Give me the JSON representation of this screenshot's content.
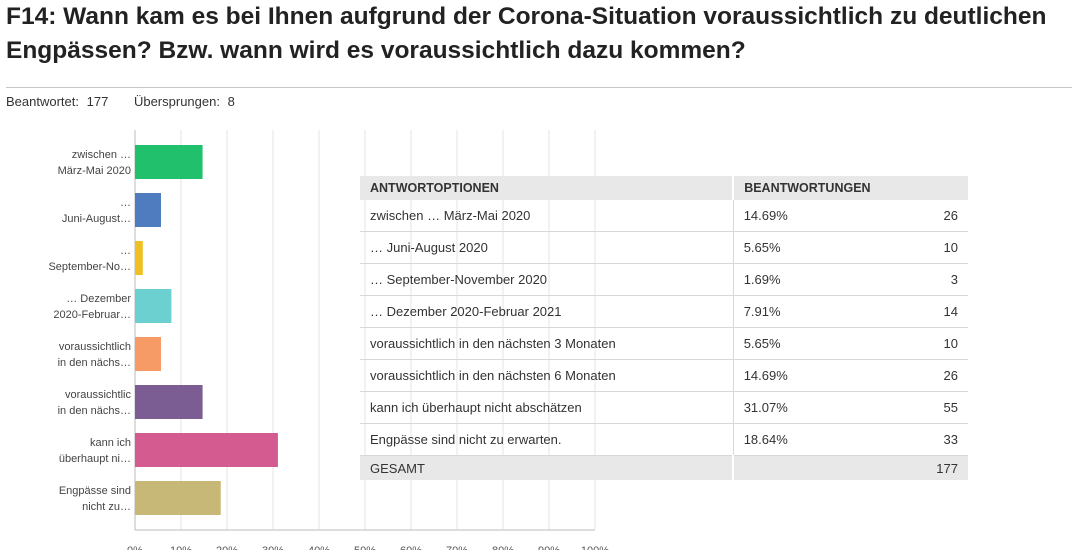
{
  "header": {
    "title": "F14: Wann kam es bei Ihnen aufgrund der Corona-Situation voraussichtlich zu deutlichen Engpässen? Bzw. wann wird es voraussichtlich dazu kommen?",
    "answered_label": "Beantwortet:",
    "answered_value": "177",
    "skipped_label": "Übersprungen:",
    "skipped_value": "8"
  },
  "chart_data": {
    "type": "bar",
    "orientation": "horizontal",
    "categories": [
      [
        "zwischen …",
        "März-Mai 2020"
      ],
      [
        "…",
        "Juni-August…"
      ],
      [
        "…",
        "September-No…"
      ],
      [
        "… Dezember",
        "2020-Februar…"
      ],
      [
        "voraussichtlich",
        "in den nächs…"
      ],
      [
        "voraussichtlic",
        "in den nächs…"
      ],
      [
        "kann ich",
        "überhaupt ni…"
      ],
      [
        "Engpässe sind",
        "nicht zu…"
      ]
    ],
    "values": [
      14.69,
      5.65,
      1.69,
      7.91,
      5.65,
      14.69,
      31.07,
      18.64
    ],
    "colors": [
      "#20c06c",
      "#4f7bbf",
      "#f0c020",
      "#6ccfd0",
      "#f79b66",
      "#7b5c93",
      "#d35b90",
      "#c8b878"
    ],
    "xlim": [
      0,
      100
    ],
    "ticks": [
      "0%",
      "10%",
      "20%",
      "30%",
      "40%",
      "50%",
      "60%",
      "70%",
      "80%",
      "90%",
      "100%"
    ],
    "grid": true
  },
  "table": {
    "headers": [
      "ANTWORTOPTIONEN",
      "BEANTWORTUNGEN"
    ],
    "rows": [
      {
        "option": "zwischen … März-Mai 2020",
        "percent": "14.69%",
        "count": "26"
      },
      {
        "option": "… Juni-August 2020",
        "percent": "5.65%",
        "count": "10"
      },
      {
        "option": "… September-November 2020",
        "percent": "1.69%",
        "count": "3"
      },
      {
        "option": "… Dezember 2020-Februar 2021",
        "percent": "7.91%",
        "count": "14"
      },
      {
        "option": "voraussichtlich in den nächsten 3 Monaten",
        "percent": "5.65%",
        "count": "10"
      },
      {
        "option": "voraussichtlich in den nächsten 6 Monaten",
        "percent": "14.69%",
        "count": "26"
      },
      {
        "option": "kann ich überhaupt nicht abschätzen",
        "percent": "31.07%",
        "count": "55"
      },
      {
        "option": "Engpässe sind nicht zu erwarten.",
        "percent": "18.64%",
        "count": "33"
      }
    ],
    "total_label": "GESAMT",
    "total_value": "177"
  }
}
